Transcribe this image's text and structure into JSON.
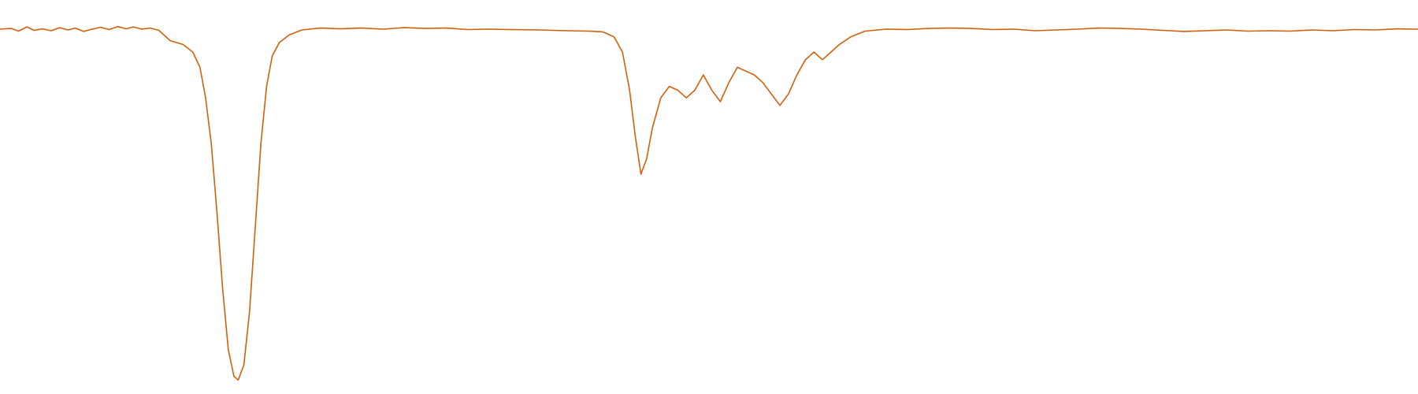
{
  "chart_data": {
    "type": "line",
    "title": "",
    "xlabel": "",
    "ylabel": "",
    "grid": false,
    "legend": "none",
    "axes_visible": false,
    "x_range": [
      0,
      100
    ],
    "y_range": [
      0,
      100
    ],
    "series": [
      {
        "color": "#d35f0a",
        "points": [
          [
            0.0,
            94.0
          ],
          [
            0.8,
            94.2
          ],
          [
            1.3,
            93.5
          ],
          [
            1.9,
            94.6
          ],
          [
            2.4,
            93.7
          ],
          [
            3.0,
            94.1
          ],
          [
            3.6,
            93.6
          ],
          [
            4.2,
            94.4
          ],
          [
            4.8,
            93.8
          ],
          [
            5.3,
            94.3
          ],
          [
            5.9,
            93.4
          ],
          [
            6.5,
            94.0
          ],
          [
            7.1,
            94.5
          ],
          [
            7.7,
            93.9
          ],
          [
            8.3,
            94.7
          ],
          [
            8.9,
            94.1
          ],
          [
            9.4,
            94.6
          ],
          [
            10.0,
            94.0
          ],
          [
            10.6,
            94.3
          ],
          [
            11.2,
            93.7
          ],
          [
            12.0,
            91.0
          ],
          [
            12.9,
            90.0
          ],
          [
            13.6,
            88.0
          ],
          [
            14.1,
            84.0
          ],
          [
            14.5,
            76.0
          ],
          [
            14.9,
            64.0
          ],
          [
            15.3,
            46.0
          ],
          [
            15.7,
            26.0
          ],
          [
            16.1,
            10.0
          ],
          [
            16.5,
            3.0
          ],
          [
            16.8,
            2.0
          ],
          [
            17.2,
            6.0
          ],
          [
            17.6,
            20.0
          ],
          [
            18.0,
            42.0
          ],
          [
            18.4,
            64.0
          ],
          [
            18.8,
            79.0
          ],
          [
            19.2,
            87.0
          ],
          [
            19.7,
            90.5
          ],
          [
            20.4,
            92.5
          ],
          [
            21.3,
            93.8
          ],
          [
            22.6,
            94.3
          ],
          [
            24.0,
            94.1
          ],
          [
            25.5,
            94.3
          ],
          [
            27.0,
            94.0
          ],
          [
            28.5,
            94.4
          ],
          [
            30.0,
            94.2
          ],
          [
            31.5,
            94.3
          ],
          [
            33.0,
            93.9
          ],
          [
            34.5,
            94.0
          ],
          [
            36.0,
            93.9
          ],
          [
            38.0,
            93.8
          ],
          [
            40.0,
            93.6
          ],
          [
            41.5,
            93.5
          ],
          [
            42.5,
            93.3
          ],
          [
            43.3,
            92.0
          ],
          [
            43.9,
            88.0
          ],
          [
            44.4,
            78.0
          ],
          [
            44.8,
            66.0
          ],
          [
            45.2,
            56.0
          ],
          [
            45.6,
            60.0
          ],
          [
            46.0,
            68.0
          ],
          [
            46.6,
            76.0
          ],
          [
            47.2,
            79.0
          ],
          [
            47.8,
            78.0
          ],
          [
            48.4,
            76.0
          ],
          [
            49.0,
            78.0
          ],
          [
            49.6,
            82.0
          ],
          [
            50.2,
            78.0
          ],
          [
            50.8,
            75.0
          ],
          [
            51.4,
            80.0
          ],
          [
            52.0,
            84.0
          ],
          [
            52.6,
            83.0
          ],
          [
            53.2,
            82.0
          ],
          [
            53.8,
            80.0
          ],
          [
            54.4,
            77.0
          ],
          [
            55.0,
            74.0
          ],
          [
            55.6,
            77.0
          ],
          [
            56.2,
            82.0
          ],
          [
            56.8,
            86.0
          ],
          [
            57.4,
            88.0
          ],
          [
            58.0,
            86.0
          ],
          [
            58.6,
            88.0
          ],
          [
            59.2,
            90.0
          ],
          [
            60.0,
            92.0
          ],
          [
            61.0,
            93.5
          ],
          [
            62.5,
            94.0
          ],
          [
            64.0,
            93.9
          ],
          [
            65.5,
            94.2
          ],
          [
            67.0,
            94.3
          ],
          [
            68.5,
            94.2
          ],
          [
            70.0,
            93.9
          ],
          [
            71.5,
            94.0
          ],
          [
            73.0,
            93.6
          ],
          [
            74.5,
            93.8
          ],
          [
            76.0,
            94.0
          ],
          [
            77.5,
            94.3
          ],
          [
            79.0,
            94.2
          ],
          [
            80.5,
            94.0
          ],
          [
            82.0,
            93.7
          ],
          [
            83.5,
            93.4
          ],
          [
            85.0,
            93.6
          ],
          [
            86.5,
            93.8
          ],
          [
            88.0,
            93.5
          ],
          [
            89.5,
            93.6
          ],
          [
            91.0,
            93.5
          ],
          [
            92.5,
            93.8
          ],
          [
            94.0,
            93.6
          ],
          [
            95.5,
            93.9
          ],
          [
            97.0,
            93.8
          ],
          [
            98.5,
            94.1
          ],
          [
            100.0,
            94.0
          ]
        ]
      }
    ]
  },
  "style": {
    "background": "#ffffff",
    "line_color": "#d35f0a"
  }
}
